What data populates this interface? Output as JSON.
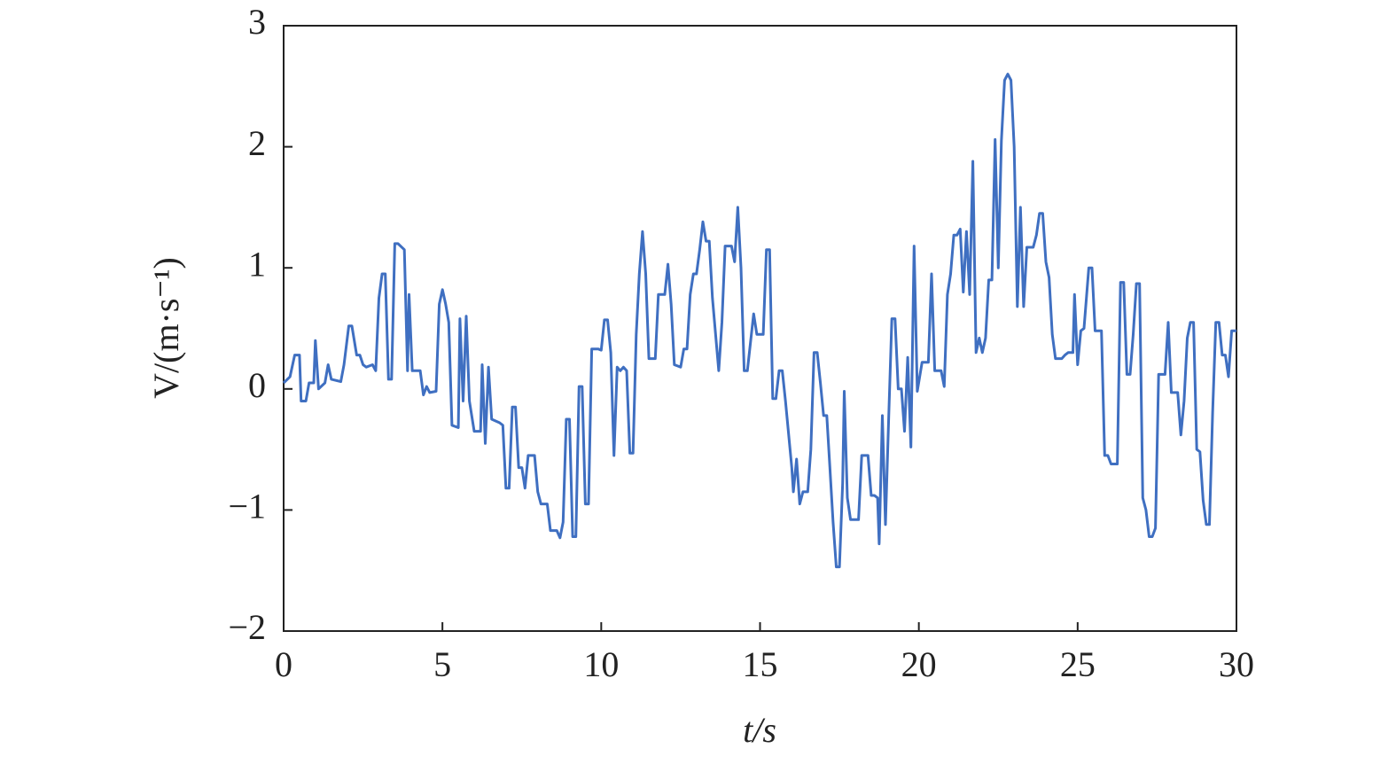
{
  "chart_data": {
    "type": "line",
    "xlabel": "t/s",
    "ylabel": "V/(m·s⁻¹)",
    "xlim": [
      0,
      30
    ],
    "xticks": [
      0,
      5,
      10,
      15,
      20,
      25,
      30
    ],
    "ylim": [
      -2,
      3
    ],
    "yticks": [
      {
        "value": -2,
        "label": "−2"
      },
      {
        "value": -1,
        "label": "−1"
      },
      0,
      1,
      2,
      3
    ],
    "grid": false,
    "series": [
      {
        "color": "#3f6fc1",
        "x": [
          0,
          0.2,
          0.35,
          0.5,
          0.55,
          0.7,
          0.8,
          0.95,
          1.0,
          1.1,
          1.3,
          1.4,
          1.5,
          1.8,
          1.9,
          2.05,
          2.15,
          2.3,
          2.4,
          2.5,
          2.6,
          2.8,
          2.9,
          3.0,
          3.1,
          3.2,
          3.3,
          3.4,
          3.5,
          3.6,
          3.8,
          3.9,
          3.95,
          4.05,
          4.3,
          4.4,
          4.5,
          4.6,
          4.8,
          4.9,
          5.0,
          5.1,
          5.2,
          5.3,
          5.5,
          5.55,
          5.65,
          5.75,
          5.85,
          6.0,
          6.2,
          6.25,
          6.35,
          6.45,
          6.55,
          6.8,
          6.9,
          7.0,
          7.1,
          7.2,
          7.3,
          7.4,
          7.5,
          7.6,
          7.7,
          7.9,
          8.0,
          8.1,
          8.3,
          8.4,
          8.6,
          8.7,
          8.8,
          8.9,
          9.0,
          9.1,
          9.2,
          9.3,
          9.4,
          9.5,
          9.6,
          9.7,
          9.9,
          10.0,
          10.1,
          10.2,
          10.3,
          10.4,
          10.5,
          10.6,
          10.7,
          10.8,
          10.9,
          11.0,
          11.1,
          11.2,
          11.3,
          11.4,
          11.5,
          11.7,
          11.8,
          12.0,
          12.1,
          12.2,
          12.3,
          12.5,
          12.6,
          12.7,
          12.8,
          12.9,
          13.0,
          13.1,
          13.2,
          13.3,
          13.4,
          13.5,
          13.7,
          13.8,
          13.9,
          14.1,
          14.2,
          14.3,
          14.4,
          14.5,
          14.6,
          14.8,
          14.9,
          15.1,
          15.2,
          15.3,
          15.4,
          15.5,
          15.6,
          15.7,
          15.8,
          16.0,
          16.05,
          16.15,
          16.25,
          16.35,
          16.5,
          16.6,
          16.7,
          16.8,
          16.9,
          17.0,
          17.1,
          17.2,
          17.3,
          17.4,
          17.5,
          17.6,
          17.65,
          17.75,
          17.85,
          18.1,
          18.2,
          18.4,
          18.5,
          18.6,
          18.7,
          18.75,
          18.85,
          18.95,
          19.05,
          19.15,
          19.25,
          19.35,
          19.45,
          19.55,
          19.65,
          19.75,
          19.85,
          19.95,
          20.1,
          20.3,
          20.4,
          20.5,
          20.7,
          20.8,
          20.9,
          21.0,
          21.1,
          21.2,
          21.3,
          21.4,
          21.5,
          21.6,
          21.7,
          21.8,
          21.9,
          22.0,
          22.1,
          22.2,
          22.3,
          22.4,
          22.5,
          22.6,
          22.7,
          22.8,
          22.9,
          23.0,
          23.1,
          23.2,
          23.3,
          23.4,
          23.6,
          23.7,
          23.8,
          23.9,
          24.0,
          24.1,
          24.2,
          24.3,
          24.5,
          24.6,
          24.7,
          24.85,
          24.9,
          25.0,
          25.1,
          25.2,
          25.35,
          25.45,
          25.55,
          25.75,
          25.85,
          25.95,
          26.05,
          26.25,
          26.35,
          26.45,
          26.55,
          26.65,
          26.75,
          26.85,
          26.95,
          27.05,
          27.15,
          27.25,
          27.35,
          27.45,
          27.55,
          27.75,
          27.85,
          27.95,
          28.15,
          28.25,
          28.35,
          28.45,
          28.55,
          28.65,
          28.75,
          28.85,
          28.95,
          29.05,
          29.15,
          29.25,
          29.35,
          29.45,
          29.55,
          29.65,
          29.75,
          29.85,
          30.0
        ],
        "values": [
          0.05,
          0.1,
          0.28,
          0.28,
          -0.1,
          -0.1,
          0.05,
          0.05,
          0.4,
          0.0,
          0.05,
          0.2,
          0.08,
          0.06,
          0.2,
          0.52,
          0.52,
          0.28,
          0.28,
          0.2,
          0.18,
          0.2,
          0.15,
          0.75,
          0.95,
          0.95,
          0.08,
          0.08,
          1.2,
          1.2,
          1.15,
          0.15,
          0.78,
          0.15,
          0.15,
          -0.05,
          0.02,
          -0.03,
          -0.02,
          0.7,
          0.82,
          0.7,
          0.55,
          -0.3,
          -0.32,
          0.58,
          -0.1,
          0.6,
          -0.1,
          -0.35,
          -0.35,
          0.2,
          -0.45,
          0.18,
          -0.25,
          -0.28,
          -0.3,
          -0.82,
          -0.82,
          -0.15,
          -0.15,
          -0.65,
          -0.65,
          -0.82,
          -0.55,
          -0.55,
          -0.85,
          -0.95,
          -0.95,
          -1.17,
          -1.17,
          -1.23,
          -1.1,
          -0.25,
          -0.25,
          -1.22,
          -1.22,
          0.02,
          0.02,
          -0.95,
          -0.95,
          0.33,
          0.33,
          0.32,
          0.57,
          0.57,
          0.3,
          -0.55,
          0.18,
          0.15,
          0.18,
          0.15,
          -0.53,
          -0.53,
          0.45,
          0.95,
          1.3,
          0.95,
          0.25,
          0.25,
          0.78,
          0.78,
          1.03,
          0.7,
          0.2,
          0.18,
          0.33,
          0.33,
          0.78,
          0.95,
          0.95,
          1.15,
          1.38,
          1.22,
          1.22,
          0.75,
          0.15,
          0.55,
          1.18,
          1.18,
          1.05,
          1.5,
          1.0,
          0.15,
          0.15,
          0.62,
          0.45,
          0.45,
          1.15,
          1.15,
          -0.08,
          -0.08,
          0.15,
          0.15,
          -0.1,
          -0.65,
          -0.85,
          -0.58,
          -0.95,
          -0.85,
          -0.85,
          -0.5,
          0.3,
          0.3,
          0.05,
          -0.22,
          -0.22,
          -0.65,
          -1.1,
          -1.47,
          -1.47,
          -0.78,
          -0.02,
          -0.9,
          -1.08,
          -1.08,
          -0.55,
          -0.55,
          -0.88,
          -0.88,
          -0.9,
          -1.28,
          -0.22,
          -1.12,
          -0.25,
          0.58,
          0.58,
          0.0,
          0.0,
          -0.35,
          0.26,
          -0.48,
          1.18,
          -0.02,
          0.22,
          0.22,
          0.95,
          0.15,
          0.15,
          0.02,
          0.78,
          0.95,
          1.27,
          1.27,
          1.32,
          0.8,
          1.3,
          0.78,
          1.88,
          0.3,
          0.42,
          0.3,
          0.42,
          0.9,
          0.9,
          2.06,
          1.0,
          2.05,
          2.55,
          2.6,
          2.55,
          2.0,
          0.68,
          1.5,
          0.68,
          1.17,
          1.17,
          1.27,
          1.45,
          1.45,
          1.05,
          0.92,
          0.45,
          0.25,
          0.25,
          0.28,
          0.3,
          0.3,
          0.78,
          0.2,
          0.48,
          0.5,
          1.0,
          1.0,
          0.48,
          0.48,
          -0.55,
          -0.55,
          -0.62,
          -0.62,
          0.88,
          0.88,
          0.12,
          0.12,
          0.45,
          0.87,
          0.87,
          -0.9,
          -1.0,
          -1.22,
          -1.22,
          -1.15,
          0.12,
          0.12,
          0.55,
          -0.03,
          -0.03,
          -0.38,
          -0.1,
          0.42,
          0.55,
          0.55,
          -0.5,
          -0.52,
          -0.92,
          -1.12,
          -1.12,
          -0.2,
          0.55,
          0.55,
          0.28,
          0.28,
          0.1,
          0.48,
          0.48
        ]
      }
    ]
  }
}
